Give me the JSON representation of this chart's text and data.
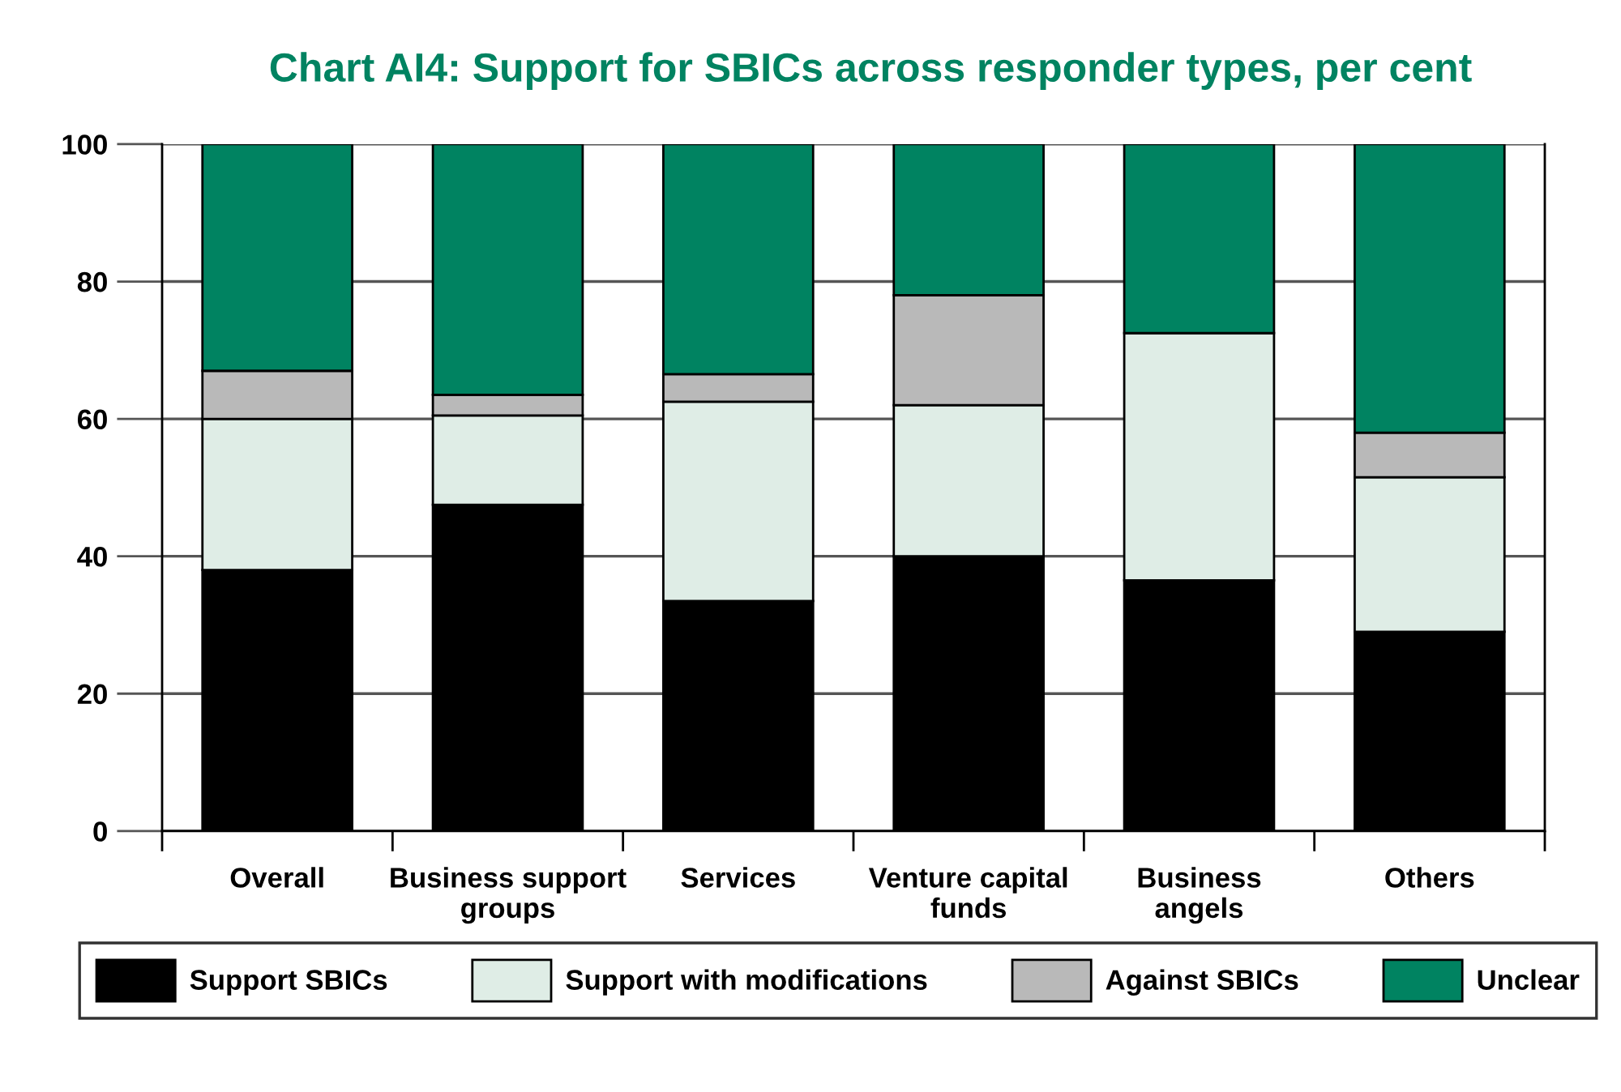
{
  "chart_data": {
    "type": "bar",
    "title": "Chart AI4: Support for SBICs across responder types, per cent",
    "categories": [
      "Overall",
      "Business support\ngroups",
      "Services",
      "Venture capital\nfunds",
      "Business\nangels",
      "Others"
    ],
    "stacked": true,
    "series": [
      {
        "name": "Support SBICs",
        "color": "#000000",
        "values": [
          38,
          47.5,
          33.5,
          40,
          36.5,
          29
        ]
      },
      {
        "name": "Support with modifications",
        "color": "#dfede6",
        "values": [
          22,
          13,
          29,
          22,
          36,
          22.5
        ]
      },
      {
        "name": "Against SBICs",
        "color": "#b9b9b9",
        "values": [
          7,
          3,
          4,
          16,
          0,
          6.5
        ]
      },
      {
        "name": "Unclear",
        "color": "#008361",
        "values": [
          33,
          36.5,
          33.5,
          22,
          27.5,
          42
        ]
      }
    ],
    "ylim": [
      0,
      100
    ],
    "yticks": [
      0,
      20,
      40,
      60,
      80,
      100
    ],
    "grid": "y",
    "legend": "bottom"
  }
}
